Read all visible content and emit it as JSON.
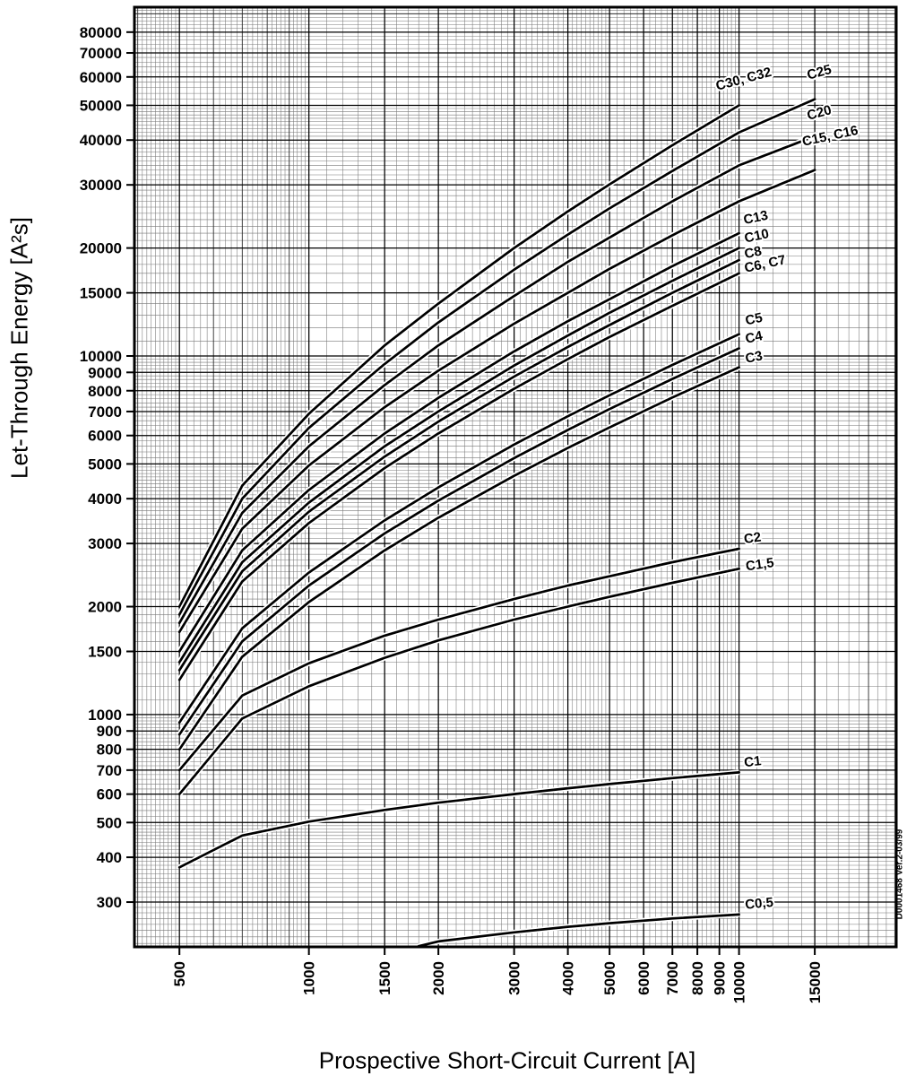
{
  "side_note": "D0001468 Ver.2-03/99",
  "chart_data": {
    "type": "line",
    "title": "",
    "xlabel": "Prospective Short-Circuit Current [A]",
    "ylabel": "Let-Through Energy [A²s]",
    "x_scale": "log",
    "y_scale": "log",
    "xlim": [
      393,
      23200
    ],
    "ylim": [
      225,
      93900
    ],
    "grid": "log minor grid on, fine subdivision 0.1 below n=5, 0.2 above",
    "legend_position": "labels-at-line-ends",
    "x_ticks_labeled": [
      500,
      1000,
      1500,
      2000,
      3000,
      4000,
      5000,
      6000,
      7000,
      8000,
      9000,
      10000,
      15000
    ],
    "y_ticks_labeled": [
      300,
      400,
      500,
      600,
      700,
      800,
      900,
      1000,
      1500,
      2000,
      3000,
      4000,
      5000,
      6000,
      7000,
      8000,
      9000,
      10000,
      15000,
      20000,
      30000,
      40000,
      50000,
      60000,
      70000,
      80000
    ],
    "colors": {
      "curve": "#000000",
      "frame": "#000000",
      "grid_fine": "#787878",
      "grid_mid": "#2b2b2b",
      "grid_major": "#000000"
    },
    "series": [
      {
        "name": "C30_C32",
        "label": "C30, C32",
        "label_at": [
          8900,
          55000
        ],
        "label_rot": -15,
        "x": [
          500,
          700,
          1000,
          1500,
          2000,
          3000,
          4000,
          5000,
          7000,
          10000
        ],
        "y": [
          2000,
          4350,
          6900,
          10700,
          14000,
          20000,
          25300,
          30100,
          38700,
          50000
        ]
      },
      {
        "name": "C25",
        "label": "C25",
        "label_at": [
          14500,
          59000
        ],
        "label_rot": -15,
        "x": [
          500,
          700,
          1000,
          1500,
          2000,
          3000,
          4000,
          5000,
          7000,
          10000,
          15000
        ],
        "y": [
          1900,
          4000,
          6300,
          9500,
          12400,
          17400,
          21800,
          25800,
          32800,
          42000,
          52000
        ]
      },
      {
        "name": "C20",
        "label": "C20",
        "label_at": [
          14500,
          45500
        ],
        "label_rot": -15,
        "x": [
          500,
          700,
          1000,
          1500,
          2000,
          3000,
          4000,
          5000,
          7000,
          10000,
          15000
        ],
        "y": [
          1800,
          3650,
          5600,
          8300,
          10700,
          14700,
          18300,
          21400,
          27000,
          34000,
          41000
        ]
      },
      {
        "name": "C15_C16",
        "label": "C15, C16",
        "label_at": [
          14100,
          38500
        ],
        "label_rot": -12,
        "x": [
          500,
          700,
          1000,
          1500,
          2000,
          3000,
          4000,
          5000,
          7000,
          10000,
          15000
        ],
        "y": [
          1700,
          3300,
          4950,
          7200,
          9100,
          12300,
          15000,
          17500,
          21700,
          27000,
          33000
        ]
      },
      {
        "name": "C13",
        "label": "C13",
        "label_at": [
          10300,
          23300
        ],
        "label_rot": -12,
        "x": [
          500,
          700,
          1000,
          1500,
          2000,
          3000,
          4000,
          5000,
          7000,
          10000
        ],
        "y": [
          1500,
          2870,
          4230,
          6080,
          7640,
          10300,
          12500,
          14400,
          17800,
          22000
        ]
      },
      {
        "name": "C10",
        "label": "C10",
        "label_at": [
          10350,
          20700
        ],
        "label_rot": -12,
        "x": [
          500,
          700,
          1000,
          1500,
          2000,
          3000,
          4000,
          5000,
          7000,
          10000
        ],
        "y": [
          1400,
          2660,
          3900,
          5600,
          7000,
          9400,
          11400,
          13200,
          16200,
          20000
        ]
      },
      {
        "name": "C8",
        "label": "C8",
        "label_at": [
          10350,
          18700
        ],
        "label_rot": -12,
        "x": [
          500,
          700,
          1000,
          1500,
          2000,
          3000,
          4000,
          5000,
          7000,
          10000
        ],
        "y": [
          1330,
          2510,
          3680,
          5240,
          6560,
          8760,
          10600,
          12200,
          15000,
          18500
        ]
      },
      {
        "name": "C6_C7",
        "label": "C6, C7",
        "label_at": [
          10350,
          17100
        ],
        "label_rot": -12,
        "x": [
          500,
          700,
          1000,
          1500,
          2000,
          3000,
          4000,
          5000,
          7000,
          10000
        ],
        "y": [
          1250,
          2350,
          3420,
          4870,
          6080,
          8100,
          9800,
          11300,
          13800,
          17000
        ]
      },
      {
        "name": "C5",
        "label": "C5",
        "label_at": [
          10400,
          12200
        ],
        "label_rot": -12,
        "x": [
          500,
          700,
          1000,
          1500,
          2000,
          3000,
          4000,
          5000,
          7000,
          10000
        ],
        "y": [
          950,
          1740,
          2490,
          3480,
          4300,
          5660,
          6790,
          7770,
          9440,
          11500
        ]
      },
      {
        "name": "C4",
        "label": "C4",
        "label_at": [
          10400,
          10850
        ],
        "label_rot": -12,
        "x": [
          500,
          700,
          1000,
          1500,
          2000,
          3000,
          4000,
          5000,
          7000,
          10000
        ],
        "y": [
          880,
          1600,
          2290,
          3200,
          3950,
          5190,
          6220,
          7110,
          8630,
          10500
        ]
      },
      {
        "name": "C3",
        "label": "C3",
        "label_at": [
          10400,
          9550
        ],
        "label_rot": -12,
        "x": [
          500,
          700,
          1000,
          1500,
          2000,
          3000,
          4000,
          5000,
          7000,
          10000
        ],
        "y": [
          800,
          1450,
          2060,
          2870,
          3540,
          4630,
          5540,
          6320,
          7660,
          9300
        ]
      },
      {
        "name": "C2",
        "label": "C2",
        "label_at": [
          10300,
          3000
        ],
        "label_rot": -8,
        "x": [
          500,
          700,
          1000,
          1500,
          2000,
          3000,
          4000,
          5000,
          7000,
          10000
        ],
        "y": [
          700,
          1130,
          1390,
          1660,
          1840,
          2100,
          2290,
          2430,
          2660,
          2900
        ]
      },
      {
        "name": "C1_5",
        "label": "C1,5",
        "label_at": [
          10400,
          2520
        ],
        "label_rot": -8,
        "x": [
          500,
          700,
          1000,
          1500,
          2000,
          3000,
          4000,
          5000,
          7000,
          10000
        ],
        "y": [
          600,
          975,
          1200,
          1440,
          1610,
          1840,
          2000,
          2130,
          2330,
          2550
        ]
      },
      {
        "name": "C1",
        "label": "C1",
        "label_at": [
          10300,
          715
        ],
        "label_rot": -6,
        "x": [
          500,
          700,
          1000,
          1500,
          2000,
          3000,
          4000,
          5000,
          7000,
          10000
        ],
        "y": [
          375,
          460,
          503,
          542,
          568,
          600,
          623,
          640,
          665,
          690
        ]
      },
      {
        "name": "C0_5",
        "label": "C0,5",
        "label_at": [
          10350,
          287
        ],
        "label_rot": -5,
        "x": [
          1800,
          2000,
          3000,
          4000,
          5000,
          7000,
          10000
        ],
        "y": [
          226,
          233,
          247,
          256,
          262,
          270,
          277
        ]
      }
    ]
  }
}
